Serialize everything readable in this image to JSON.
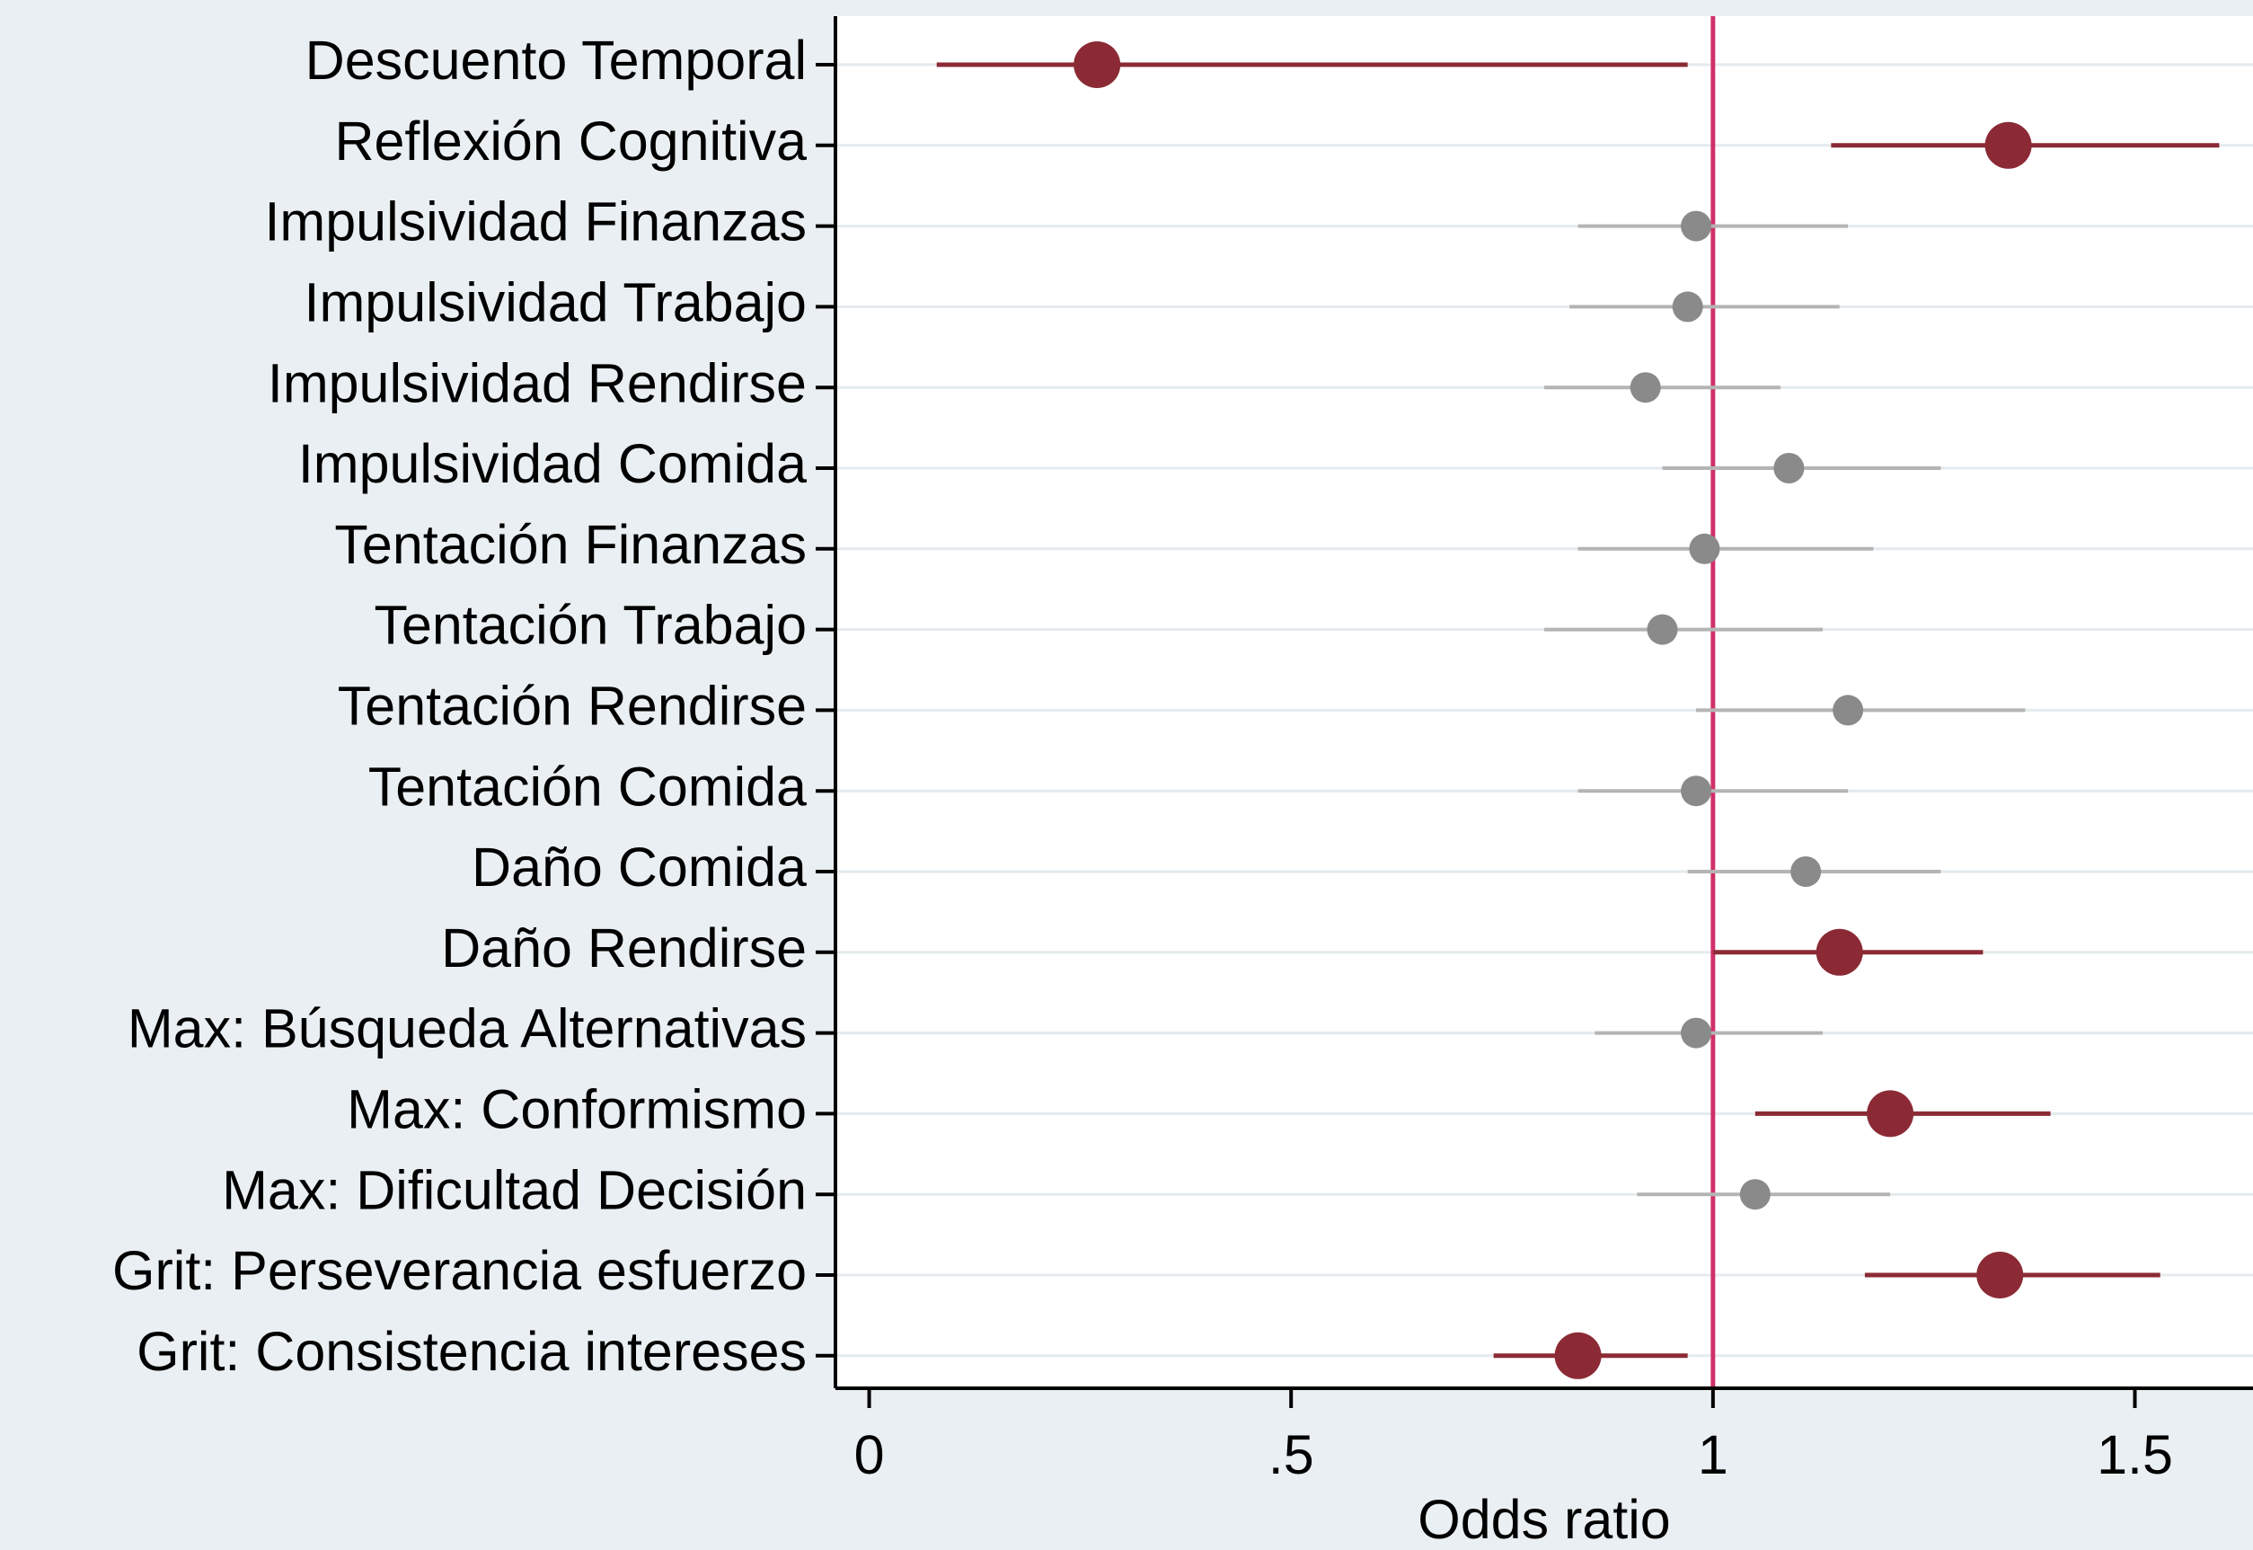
{
  "chart_data": {
    "type": "scatter",
    "subtype": "coefficient-plot",
    "xlabel": "Odds ratio",
    "ylabel": "",
    "title": "",
    "xlim": [
      -0.04,
      1.64
    ],
    "xticks": [
      0,
      0.5,
      1,
      1.5
    ],
    "xtick_labels": [
      "0",
      ".5",
      "1",
      "1.5"
    ],
    "reference_line": 1,
    "grid": "horizontal",
    "colors": {
      "significant": "#8b2a35",
      "not_significant_point": "#8a8a8a",
      "not_significant_ci": "#b4b4b4",
      "reference_line": "#d0306a",
      "plot_background": "#ffffff",
      "page_background": "#e9eff2",
      "grid": "#e4eaed"
    },
    "rows": [
      {
        "label": "Descuento Temporal",
        "estimate": 0.27,
        "ci_low": 0.08,
        "ci_high": 0.97,
        "significant": true
      },
      {
        "label": "Reflexión Cognitiva",
        "estimate": 1.35,
        "ci_low": 1.14,
        "ci_high": 1.6,
        "significant": true
      },
      {
        "label": "Impulsividad Finanzas",
        "estimate": 0.98,
        "ci_low": 0.84,
        "ci_high": 1.16,
        "significant": false
      },
      {
        "label": "Impulsividad Trabajo",
        "estimate": 0.97,
        "ci_low": 0.83,
        "ci_high": 1.15,
        "significant": false
      },
      {
        "label": "Impulsividad Rendirse",
        "estimate": 0.92,
        "ci_low": 0.8,
        "ci_high": 1.08,
        "significant": false
      },
      {
        "label": "Impulsividad Comida",
        "estimate": 1.09,
        "ci_low": 0.94,
        "ci_high": 1.27,
        "significant": false
      },
      {
        "label": "Tentación Finanzas",
        "estimate": 0.99,
        "ci_low": 0.84,
        "ci_high": 1.19,
        "significant": false
      },
      {
        "label": "Tentación Trabajo",
        "estimate": 0.94,
        "ci_low": 0.8,
        "ci_high": 1.13,
        "significant": false
      },
      {
        "label": "Tentación Rendirse",
        "estimate": 1.16,
        "ci_low": 0.98,
        "ci_high": 1.37,
        "significant": false
      },
      {
        "label": "Tentación Comida",
        "estimate": 0.98,
        "ci_low": 0.84,
        "ci_high": 1.16,
        "significant": false
      },
      {
        "label": "Daño Comida",
        "estimate": 1.11,
        "ci_low": 0.97,
        "ci_high": 1.27,
        "significant": false
      },
      {
        "label": "Daño Rendirse",
        "estimate": 1.15,
        "ci_low": 1.0,
        "ci_high": 1.32,
        "significant": true
      },
      {
        "label": "Max: Búsqueda Alternativas",
        "estimate": 0.98,
        "ci_low": 0.86,
        "ci_high": 1.13,
        "significant": false
      },
      {
        "label": "Max: Conformismo",
        "estimate": 1.21,
        "ci_low": 1.05,
        "ci_high": 1.4,
        "significant": true
      },
      {
        "label": "Max: Dificultad Decisión",
        "estimate": 1.05,
        "ci_low": 0.91,
        "ci_high": 1.21,
        "significant": false
      },
      {
        "label": "Grit: Perseverancia esfuerzo",
        "estimate": 1.34,
        "ci_low": 1.18,
        "ci_high": 1.53,
        "significant": true
      },
      {
        "label": "Grit: Consistencia intereses",
        "estimate": 0.84,
        "ci_low": 0.74,
        "ci_high": 0.97,
        "significant": true
      }
    ]
  }
}
